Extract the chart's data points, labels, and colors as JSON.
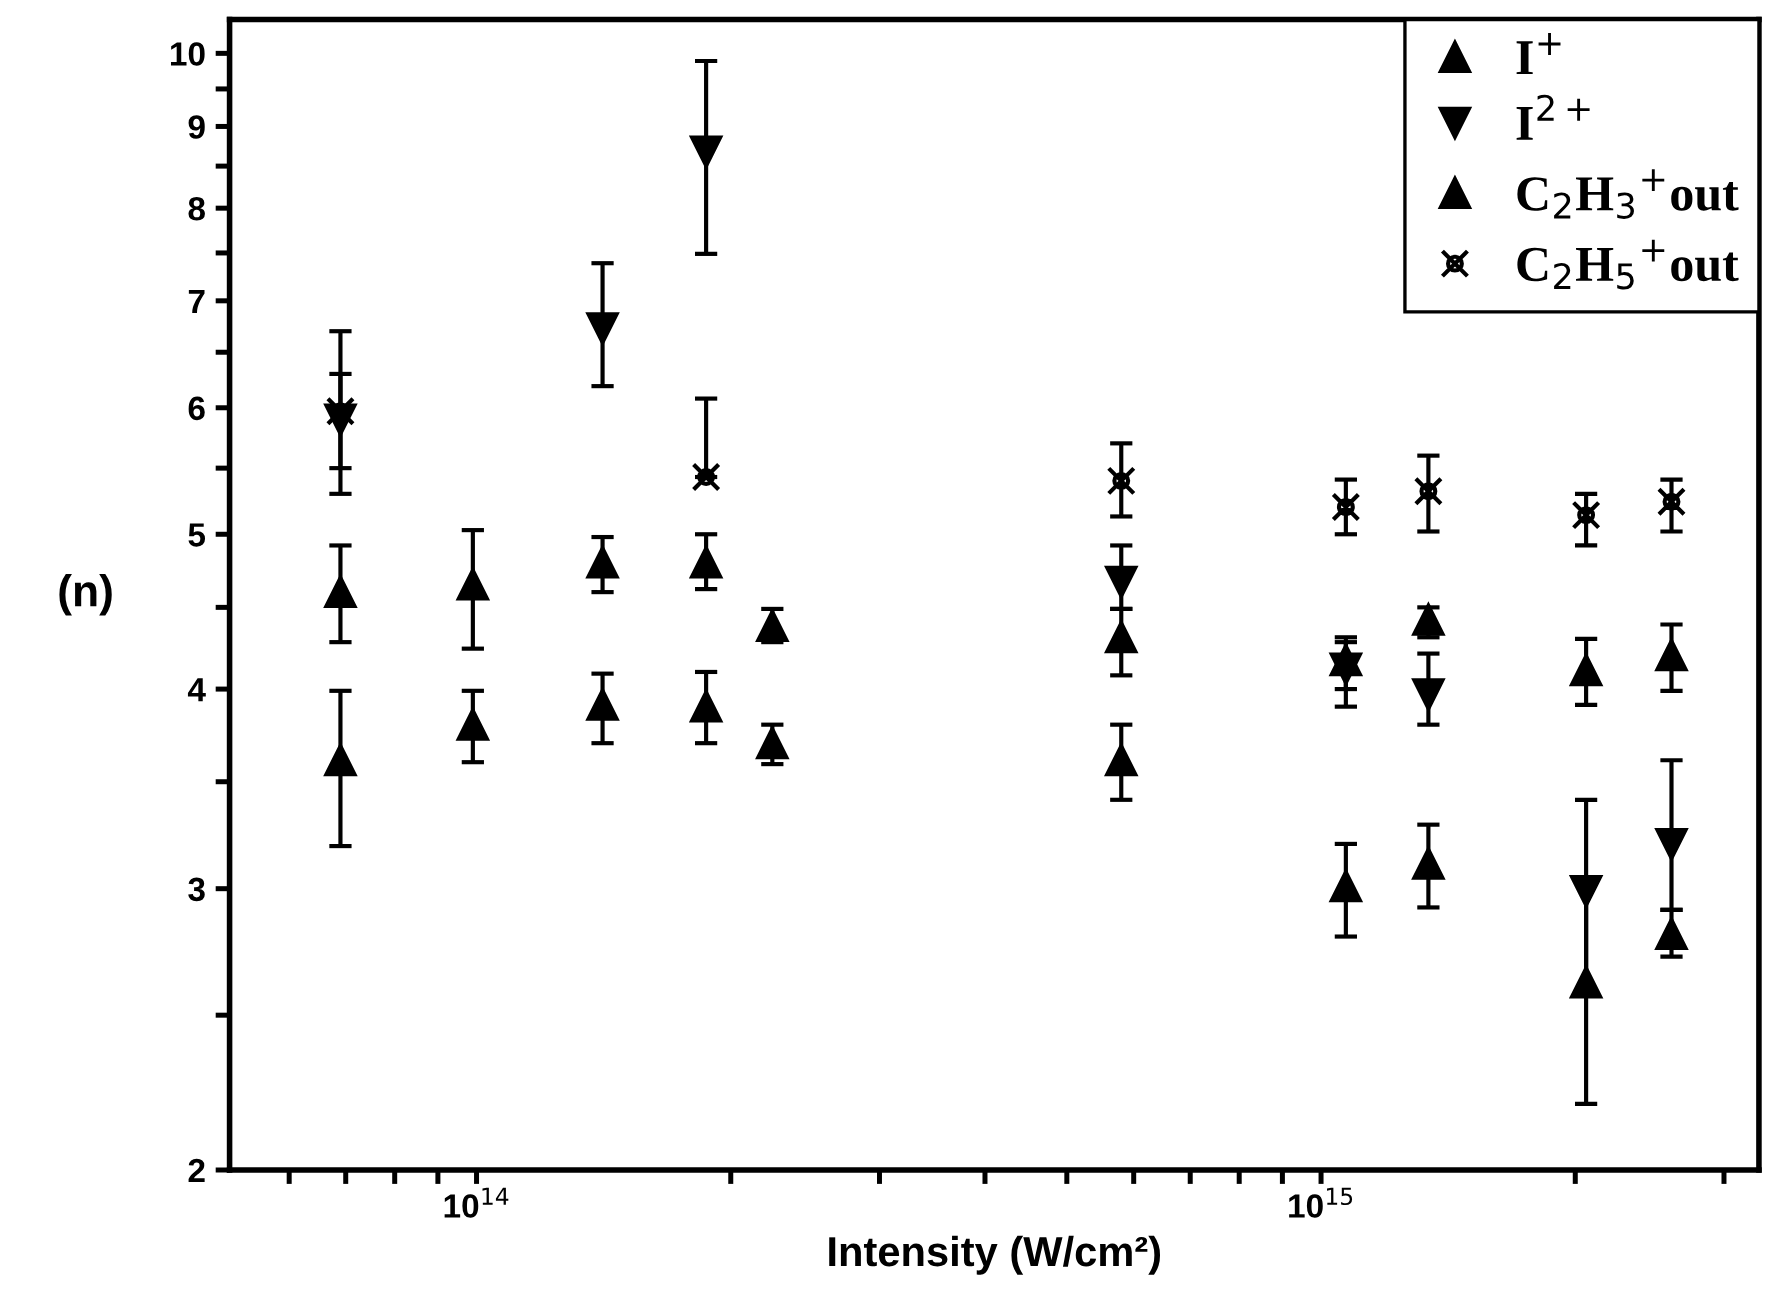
{
  "chart_data": {
    "type": "scatter",
    "xlabel": "Intensity (W/cm²)",
    "ylabel": "(n)",
    "log": "xy",
    "legend": "top right",
    "grid": false,
    "xlim": [
      51000000000000.0,
      3300000000000000.0
    ],
    "ylim": [
      2,
      10.5
    ],
    "xticks": [
      {
        "value": 60000000000000.0,
        "label": null
      },
      {
        "value": 70000000000000.0,
        "label": null
      },
      {
        "value": 80000000000000.0,
        "label": null
      },
      {
        "value": 90000000000000.0,
        "label": null
      },
      {
        "value": 100000000000000.0,
        "label": "10$^{14}$"
      },
      {
        "value": 200000000000000.0,
        "label": null
      },
      {
        "value": 300000000000000.0,
        "label": null
      },
      {
        "value": 400000000000000.0,
        "label": null
      },
      {
        "value": 500000000000000.0,
        "label": null
      },
      {
        "value": 600000000000000.0,
        "label": null
      },
      {
        "value": 700000000000000.0,
        "label": null
      },
      {
        "value": 800000000000000.0,
        "label": null
      },
      {
        "value": 900000000000000.0,
        "label": null
      },
      {
        "value": 1000000000000000.0,
        "label": "10$^{15}$"
      },
      {
        "value": 2000000000000000.0,
        "label": null
      },
      {
        "value": 3000000000000000.0,
        "label": null
      }
    ],
    "yticks": [
      2,
      {
        "value": 2.5,
        "label": null
      },
      3,
      {
        "value": 3.5,
        "label": null
      },
      4,
      {
        "value": 4.5,
        "label": null
      },
      5,
      {
        "value": 5.5,
        "label": null
      },
      6,
      {
        "value": 6.5,
        "label": null
      },
      7,
      {
        "value": 7.5,
        "label": null
      },
      8,
      {
        "value": 8.5,
        "label": null
      },
      9,
      {
        "value": 9.5,
        "label": null
      },
      10
    ],
    "series": [
      {
        "name": "I$^{+}$",
        "color": "#000000",
        "marker": "triangle",
        "x": [
          69000000000000.0,
          99000000000000.0,
          141000000000000.0,
          187000000000000.0,
          224000000000000.0,
          580000000000000.0,
          1070000000000000.0,
          1340000000000000.0,
          2060000000000000.0,
          2600000000000000.0
        ],
        "values": [
          4.6,
          4.65,
          4.8,
          4.8,
          4.38,
          4.31,
          4.17,
          4.42,
          4.11,
          4.2
        ],
        "errors": [
          [
            4.28,
            4.92
          ],
          [
            4.24,
            5.03
          ],
          [
            4.6,
            4.98
          ],
          [
            4.62,
            5.0
          ],
          [
            4.28,
            4.49
          ],
          [
            4.08,
            4.49
          ],
          [
            4.0,
            4.31
          ],
          [
            4.31,
            4.5
          ],
          [
            3.91,
            4.3
          ],
          [
            3.99,
            4.39
          ]
        ]
      },
      {
        "name": "I$^{2+}$",
        "color": "#000000",
        "marker": "triangle_down",
        "x": [
          69000000000000.0,
          141000000000000.0,
          187000000000000.0,
          580000000000000.0,
          1070000000000000.0,
          1340000000000000.0,
          2060000000000000.0,
          2600000000000000.0
        ],
        "values": [
          5.9,
          6.73,
          8.68,
          4.67,
          4.12,
          3.97,
          2.99,
          3.2
        ],
        "errors": [
          [
            5.5,
            6.3
          ],
          [
            6.19,
            7.39
          ],
          [
            7.49,
            9.89
          ],
          [
            4.49,
            4.92
          ],
          [
            3.9,
            4.28
          ],
          [
            3.8,
            4.21
          ],
          [
            2.57,
            3.41
          ],
          [
            2.91,
            3.61
          ]
        ]
      },
      {
        "name": "C$_{2}$H$_{3}$$^{+}$out",
        "color": "#000000",
        "marker": "triangle",
        "x": [
          69000000000000.0,
          99000000000000.0,
          141000000000000.0,
          187000000000000.0,
          224000000000000.0,
          580000000000000.0,
          1070000000000000.0,
          1340000000000000.0,
          2060000000000000.0,
          2600000000000000.0
        ],
        "values": [
          3.61,
          3.8,
          3.91,
          3.9,
          3.7,
          3.61,
          3.01,
          3.11,
          2.62,
          2.81
        ],
        "errors": [
          [
            3.19,
            3.99
          ],
          [
            3.6,
            3.99
          ],
          [
            3.7,
            4.09
          ],
          [
            3.7,
            4.1
          ],
          [
            3.59,
            3.8
          ],
          [
            3.41,
            3.8
          ],
          [
            2.8,
            3.2
          ],
          [
            2.92,
            3.29
          ],
          [
            2.2,
            3.04
          ],
          [
            2.72,
            2.91
          ]
        ]
      },
      {
        "name": "C$_{2}$H$_{5}$$^{+}$out",
        "color": "#000000",
        "marker": "cross",
        "x": [
          69000000000000.0,
          187000000000000.0,
          580000000000000.0,
          1070000000000000.0,
          1340000000000000.0,
          2060000000000000.0,
          2600000000000000.0
        ],
        "values": [
          5.97,
          5.43,
          5.4,
          5.2,
          5.32,
          5.14,
          5.24
        ],
        "errors": [
          [
            5.3,
            6.7
          ],
          [
            5.43,
            6.08
          ],
          [
            5.13,
            5.7
          ],
          [
            5.0,
            5.41
          ],
          [
            5.02,
            5.6
          ],
          [
            4.92,
            5.3
          ],
          [
            5.02,
            5.41
          ]
        ]
      }
    ]
  }
}
